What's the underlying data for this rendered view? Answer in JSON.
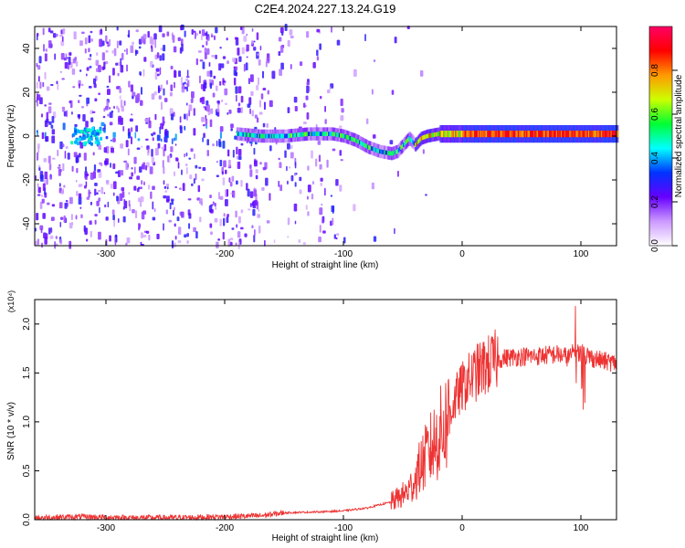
{
  "title": "C2E4.2024.227.13.24.G19",
  "chart_data": [
    {
      "type": "heatmap",
      "xlabel": "Height of straight line (km)",
      "ylabel": "Frequency (Hz)",
      "xlim": [
        -360,
        130
      ],
      "ylim": [
        -50,
        50
      ],
      "xticks": [
        -300,
        -200,
        -100,
        0,
        100
      ],
      "yticks": [
        -40,
        -20,
        0,
        20,
        40
      ],
      "colorbar": {
        "label": "Normalized spectral amplitude",
        "range": [
          0,
          1
        ],
        "ticks": [
          0.0,
          0.2,
          0.4,
          0.6,
          0.8
        ],
        "tick_labels": [
          "0.0",
          "0.2",
          "0.4",
          "0.6",
          "0.8"
        ],
        "colormap": [
          "#ffffff",
          "#cc99ff",
          "#6600ff",
          "#0033ff",
          "#00ffff",
          "#00ff33",
          "#ccff00",
          "#ff9900",
          "#ff0000",
          "#ff0066"
        ]
      },
      "ridge": {
        "x": [
          -190,
          -170,
          -150,
          -130,
          -110,
          -100,
          -90,
          -80,
          -70,
          -60,
          -55,
          -50,
          -45,
          -40,
          -35,
          -30,
          -20,
          0,
          50,
          100,
          130
        ],
        "frequency": [
          1,
          0,
          0,
          1,
          1,
          0,
          -2,
          -5,
          -7,
          -8,
          -7,
          -4,
          -1,
          -4,
          -1,
          0,
          1,
          1,
          1,
          1,
          1
        ]
      }
    },
    {
      "type": "line",
      "xlabel": "Height of straight line (km)",
      "ylabel": "SNR (10 * v/v)",
      "scale_label": "(x10⁴)",
      "xlim": [
        -360,
        130
      ],
      "ylim": [
        0,
        2.25
      ],
      "xticks": [
        -300,
        -200,
        -100,
        0,
        100
      ],
      "yticks": [
        0.0,
        0.5,
        1.0,
        1.5,
        2.0
      ],
      "ytick_labels": [
        "0.0",
        "0.5",
        "1.0",
        "1.5",
        "2.0"
      ],
      "line_color": "#ee3333",
      "series": [
        {
          "x": [
            -360,
            -320,
            -280,
            -240,
            -200,
            -170,
            -150,
            -120,
            -100,
            -80,
            -60,
            -50,
            -45,
            -40,
            -35,
            -30,
            -25,
            -20,
            -15,
            -10,
            -5,
            0,
            5,
            10,
            15,
            20,
            25,
            30,
            40,
            50,
            60,
            70,
            80,
            90,
            95,
            100,
            105,
            110,
            120,
            130
          ],
          "values": [
            0.02,
            0.03,
            0.02,
            0.02,
            0.03,
            0.04,
            0.07,
            0.08,
            0.09,
            0.12,
            0.18,
            0.25,
            0.3,
            0.4,
            0.55,
            0.65,
            0.75,
            0.85,
            0.95,
            1.1,
            1.25,
            1.35,
            1.42,
            1.48,
            1.53,
            1.57,
            1.6,
            1.64,
            1.66,
            1.67,
            1.67,
            1.68,
            1.69,
            1.66,
            1.72,
            1.7,
            1.68,
            1.65,
            1.62,
            1.6
          ]
        }
      ]
    }
  ]
}
